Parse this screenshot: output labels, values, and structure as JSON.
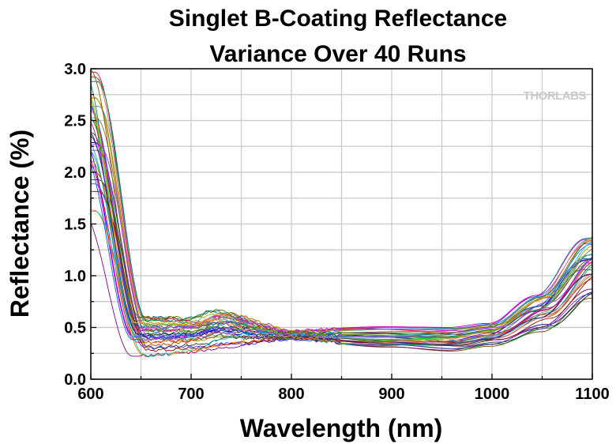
{
  "chart_data": {
    "type": "line",
    "title_line1": "Singlet B-Coating Reflectance",
    "title_line2": "Variance Over 40 Runs",
    "xlabel": "Wavelength (nm)",
    "ylabel": "Reflectance (%)",
    "xlim": [
      600,
      1100
    ],
    "ylim": [
      0,
      3.0
    ],
    "x_ticks": [
      "600",
      "700",
      "800",
      "900",
      "1000",
      "1100"
    ],
    "y_ticks": [
      "0.0",
      "0.5",
      "1.0",
      "1.5",
      "2.0",
      "2.5",
      "3.0"
    ],
    "grid": true,
    "watermark": "THORLABS",
    "num_runs": 40,
    "colors": [
      "#000080",
      "#ff0000",
      "#008000",
      "#0000ff",
      "#ff00ff",
      "#00aaaa",
      "#808000",
      "#800080",
      "#ff8000",
      "#008080",
      "#804000",
      "#4040ff",
      "#00cc00",
      "#cc0066",
      "#006666",
      "#999900",
      "#660066",
      "#3366ff",
      "#ff3399",
      "#009933",
      "#333333",
      "#cc3300",
      "#6633cc",
      "#00cccc",
      "#996633",
      "#336600",
      "#cc00cc",
      "#0066cc",
      "#ff6666",
      "#669999",
      "#990000",
      "#3399ff",
      "#66cc33",
      "#993399",
      "#cc9900",
      "#003399",
      "#ff9933",
      "#339966",
      "#9933ff",
      "#666600"
    ],
    "series_reference": {
      "x": [
        600,
        650,
        700,
        730,
        800,
        900,
        960,
        1000,
        1050,
        1100
      ],
      "y_typical": [
        2.3,
        0.4,
        0.4,
        0.47,
        0.43,
        0.36,
        0.33,
        0.37,
        0.55,
        0.95
      ],
      "y_min": [
        1.6,
        0.22,
        0.25,
        0.28,
        0.38,
        0.3,
        0.26,
        0.31,
        0.45,
        0.78
      ],
      "y_max": [
        3.0,
        0.6,
        0.6,
        0.72,
        0.48,
        0.52,
        0.52,
        0.56,
        0.85,
        1.38
      ]
    }
  }
}
